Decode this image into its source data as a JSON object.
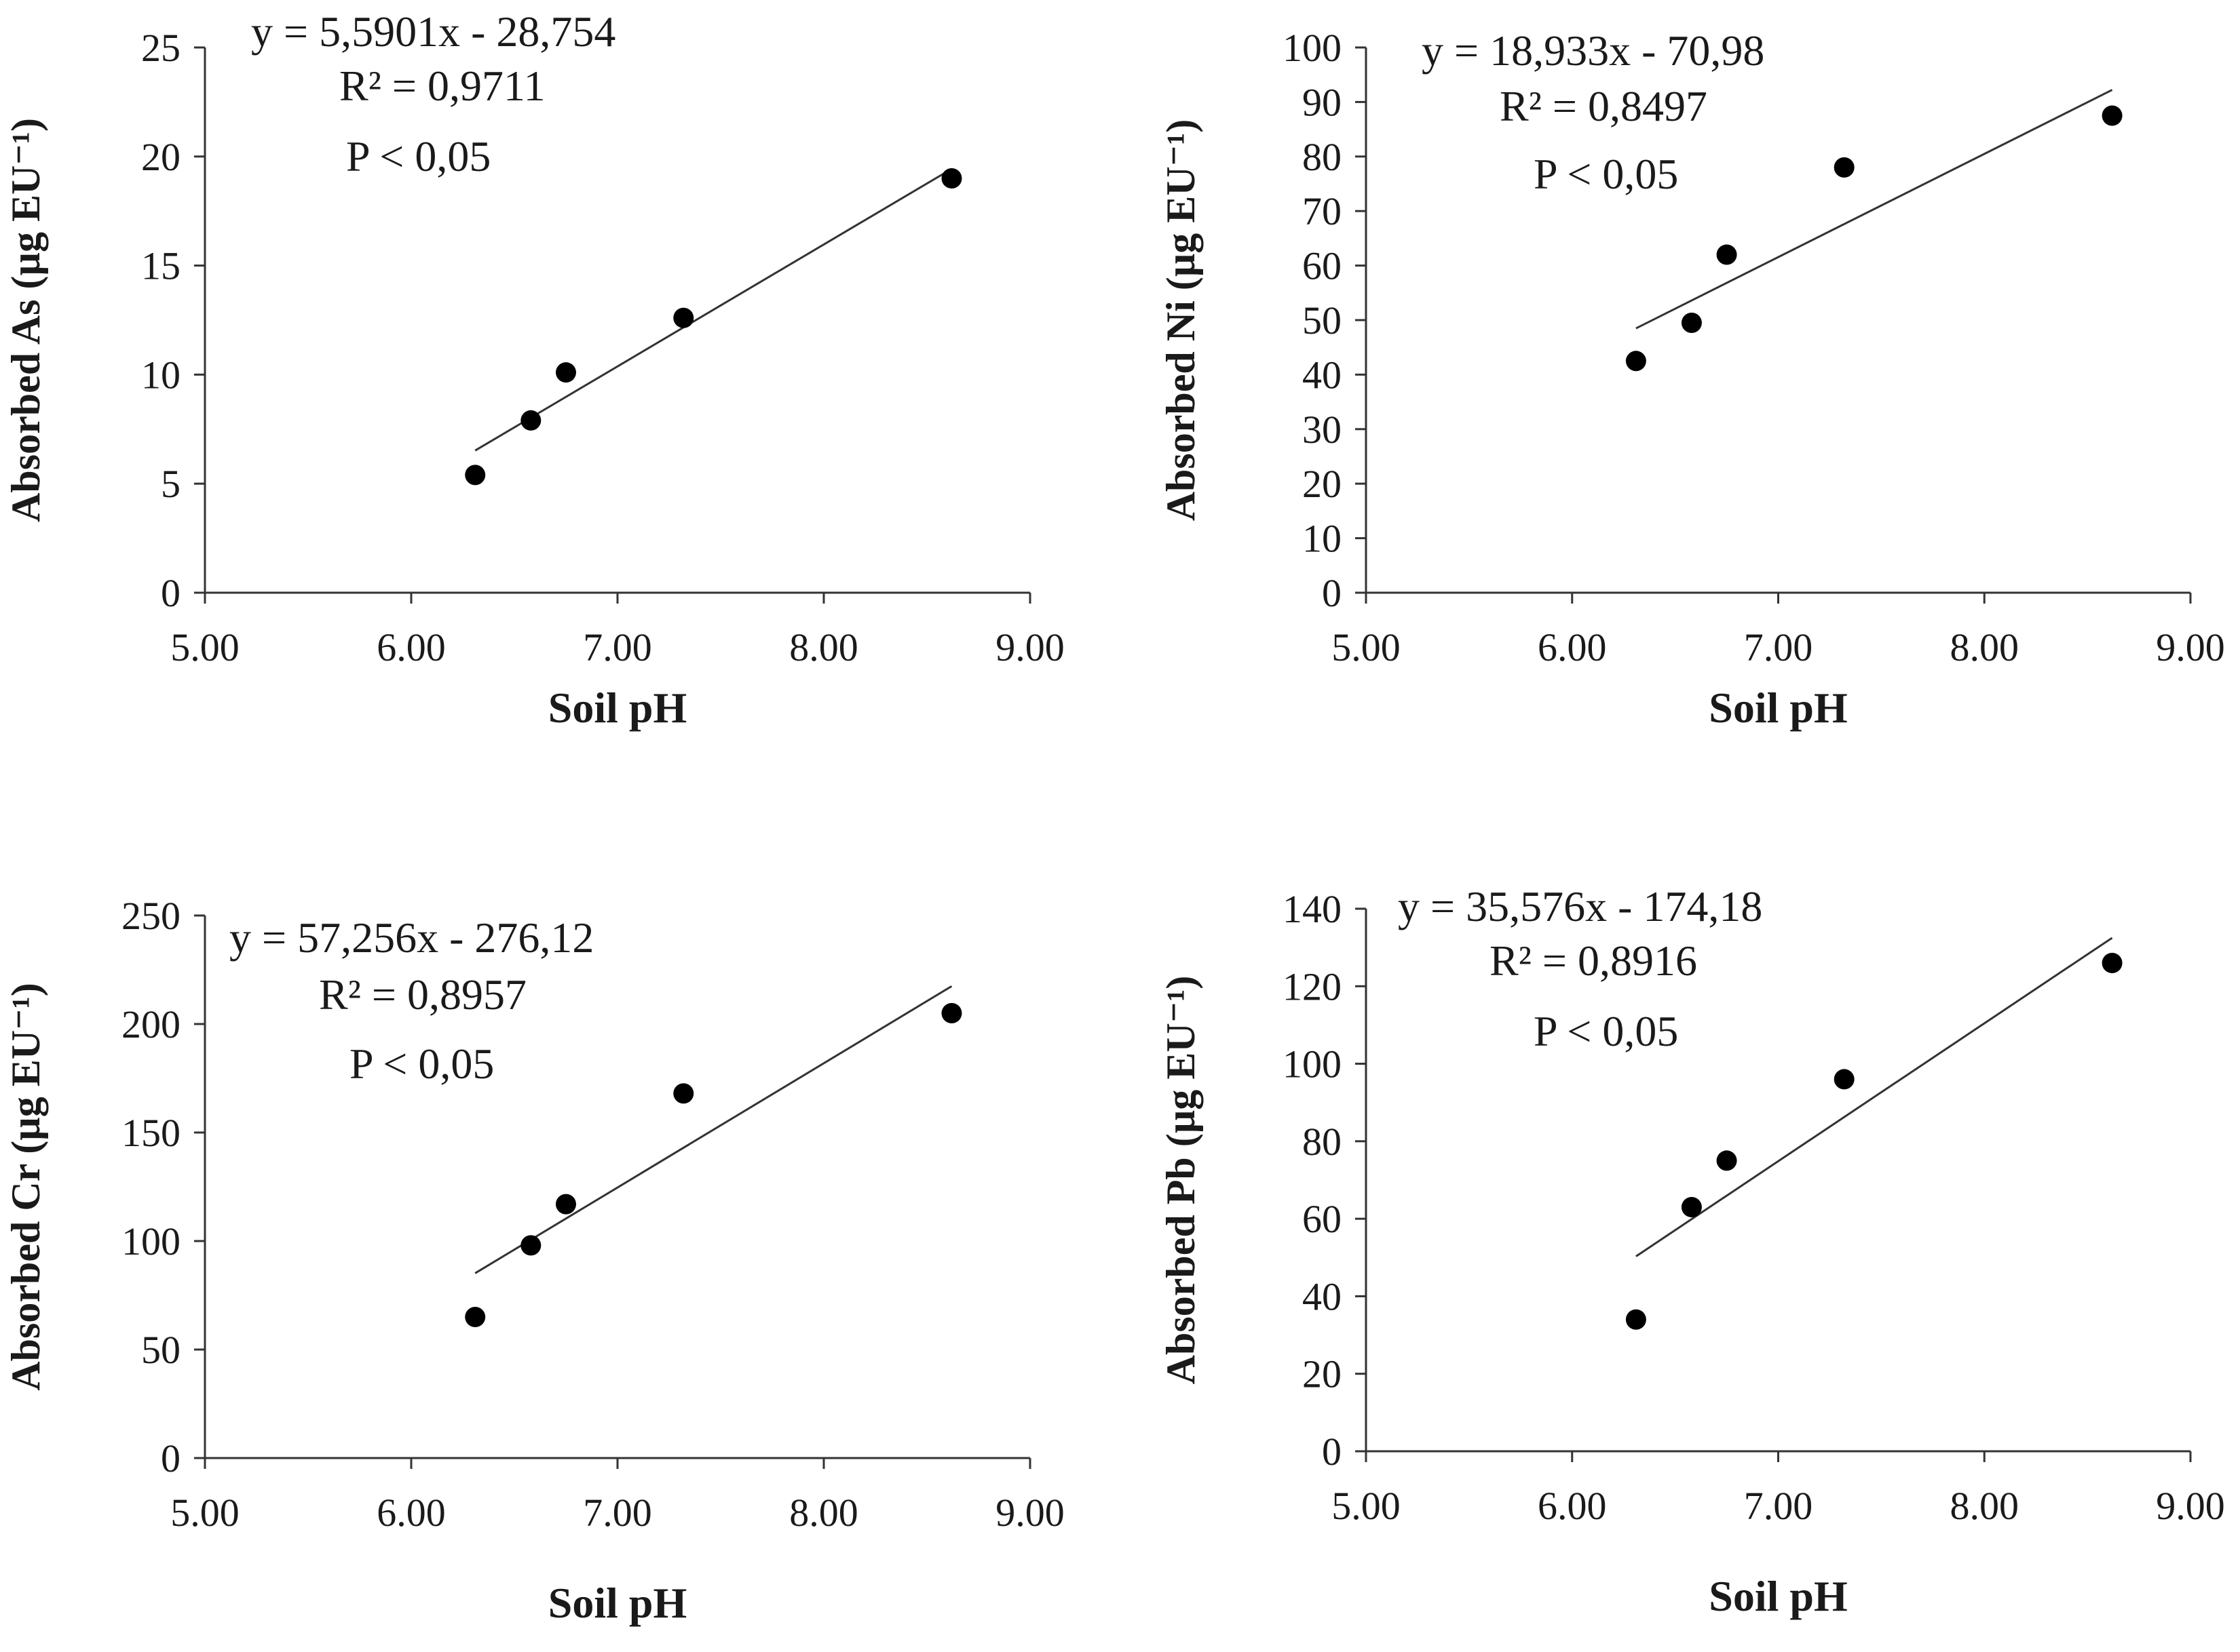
{
  "chart_data": [
    {
      "type": "scatter",
      "id": "as",
      "xlabel": "Soil pH",
      "ylabel": "Absorbed As (µg EU⁻¹)",
      "xlim": [
        5,
        9
      ],
      "ylim": [
        0,
        25
      ],
      "xticks": [
        "5.00",
        "6.00",
        "7.00",
        "8.00",
        "9.00"
      ],
      "yticks": [
        "0",
        "5",
        "10",
        "15",
        "20",
        "25"
      ],
      "x": [
        6.31,
        6.58,
        6.75,
        7.32,
        8.62
      ],
      "y": [
        5.4,
        7.9,
        10.1,
        12.6,
        19.0
      ],
      "trendline": {
        "slope": 5.5901,
        "intercept": -28.754,
        "x_range": [
          6.31,
          8.62
        ]
      },
      "annotations": {
        "equation": "y = 5,5901x - 28,754",
        "r2": "R² = 0,9711",
        "p": "P < 0,05"
      }
    },
    {
      "type": "scatter",
      "id": "ni",
      "xlabel": "Soil pH",
      "ylabel": "Absorbed Ni (µg EU⁻¹)",
      "xlim": [
        5,
        9
      ],
      "ylim": [
        0,
        100
      ],
      "xticks": [
        "5.00",
        "6.00",
        "7.00",
        "8.00",
        "9.00"
      ],
      "yticks": [
        "0",
        "10",
        "20",
        "30",
        "40",
        "50",
        "60",
        "70",
        "80",
        "90",
        "100"
      ],
      "x": [
        6.31,
        6.58,
        6.75,
        7.32,
        8.62
      ],
      "y": [
        42.5,
        49.5,
        62,
        78,
        87.5
      ],
      "trendline": {
        "slope": 18.933,
        "intercept": -70.98,
        "x_range": [
          6.31,
          8.62
        ]
      },
      "annotations": {
        "equation": "y = 18,933x - 70,98",
        "r2": "R² = 0,8497",
        "p": "P < 0,05"
      }
    },
    {
      "type": "scatter",
      "id": "cr",
      "xlabel": "Soil pH",
      "ylabel": "Absorbed Cr (µg EU⁻¹)",
      "xlim": [
        5,
        9
      ],
      "ylim": [
        0,
        250
      ],
      "xticks": [
        "5.00",
        "6.00",
        "7.00",
        "8.00",
        "9.00"
      ],
      "yticks": [
        "0",
        "50",
        "100",
        "150",
        "200",
        "250"
      ],
      "x": [
        6.31,
        6.58,
        6.75,
        7.32,
        8.62
      ],
      "y": [
        65,
        98,
        117,
        168,
        205
      ],
      "trendline": {
        "slope": 57.256,
        "intercept": -276.12,
        "x_range": [
          6.31,
          8.62
        ]
      },
      "annotations": {
        "equation": "y = 57,256x - 276,12",
        "r2": "R² = 0,8957",
        "p": "P < 0,05"
      }
    },
    {
      "type": "scatter",
      "id": "pb",
      "xlabel": "Soil pH",
      "ylabel": "Absorbed Pb (µg EU⁻¹)",
      "xlim": [
        5,
        9
      ],
      "ylim": [
        0,
        140
      ],
      "xticks": [
        "5.00",
        "6.00",
        "7.00",
        "8.00",
        "9.00"
      ],
      "yticks": [
        "0",
        "20",
        "40",
        "60",
        "80",
        "100",
        "120",
        "140"
      ],
      "x": [
        6.31,
        6.58,
        6.75,
        7.32,
        8.62
      ],
      "y": [
        34,
        63,
        75,
        96,
        126
      ],
      "trendline": {
        "slope": 35.576,
        "intercept": -174.18,
        "x_range": [
          6.31,
          8.62
        ]
      },
      "annotations": {
        "equation": "y = 35,576x - 174,18",
        "r2": "R² = 0,8916",
        "p": "P < 0,05"
      }
    }
  ]
}
